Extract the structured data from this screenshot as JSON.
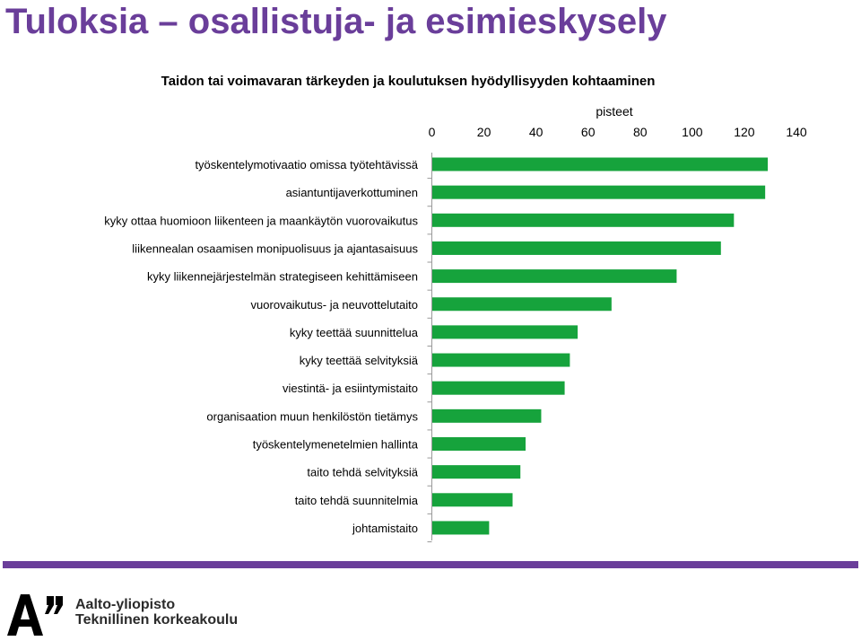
{
  "slide": {
    "title": "Tuloksia – osallistuja- ja esimieskysely",
    "title_color": "#6a3e9a",
    "divider_color": "#6a3e9a"
  },
  "brand": {
    "name": "Aalto-yliopisto",
    "subtitle": "Teknillinen korkeakoulu",
    "logo_text": "A”",
    "text_color": "#2b2b2b"
  },
  "chart_data": {
    "type": "bar",
    "orientation": "horizontal",
    "title": "Taidon tai voimavaran tärkeyden ja koulutuksen hyödyllisyyden kohtaaminen",
    "xlabel": "pisteet",
    "ylabel": "",
    "xlim": [
      0,
      140
    ],
    "xticks": [
      0,
      20,
      40,
      60,
      80,
      100,
      120,
      140
    ],
    "axis_position": "top",
    "grid": false,
    "bar_color": "#16a33c",
    "categories": [
      "työskentelymotivaatio omissa työtehtävissä",
      "asiantuntijaverkottuminen",
      "kyky ottaa huomioon liikenteen ja maankäytön vuorovaikutus",
      "liikennealan osaamisen monipuolisuus ja ajantasaisuus",
      "kyky liikennejärjestelmän strategiseen kehittämiseen",
      "vuorovaikutus- ja neuvottelutaito",
      "kyky teettää suunnittelua",
      "kyky teettää selvityksiä",
      "viestintä- ja esiintymistaito",
      "organisaation muun henkilöstön tietämys",
      "työskentelymenetelmien hallinta",
      "taito tehdä selvityksiä",
      "taito tehdä suunnitelmia",
      "johtamistaito"
    ],
    "values": [
      129,
      128,
      116,
      111,
      94,
      69,
      56,
      53,
      51,
      42,
      36,
      34,
      31,
      22
    ]
  }
}
